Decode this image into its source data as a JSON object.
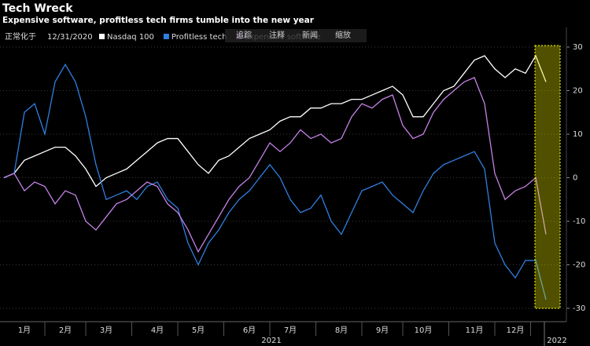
{
  "chart_data": {
    "type": "line",
    "title": "Tech Wreck",
    "subtitle": "Expensive software, profitless tech firms tumble into the new year",
    "normalized_label": "正常化于",
    "normalized_date": "12/31/2020",
    "categories": [
      null,
      null,
      "1月",
      null,
      null,
      null,
      "2月",
      null,
      null,
      null,
      "3月",
      null,
      null,
      null,
      null,
      "4月",
      null,
      null,
      null,
      "5月",
      null,
      null,
      null,
      null,
      "6月",
      null,
      null,
      null,
      "7月",
      null,
      null,
      null,
      null,
      "8月",
      null,
      null,
      null,
      "9月",
      null,
      null,
      null,
      "10月",
      null,
      null,
      null,
      null,
      "11月",
      null,
      null,
      null,
      "12月",
      null,
      null,
      "2022"
    ],
    "year_label": "2021",
    "series": [
      {
        "name": "Nasdaq 100",
        "color": "#ffffff",
        "values": [
          0,
          1,
          4,
          5,
          6,
          7,
          7,
          5,
          2,
          -2,
          0,
          1,
          2,
          4,
          6,
          8,
          9,
          9,
          6,
          3,
          1,
          4,
          5,
          7,
          9,
          10,
          11,
          13,
          14,
          14,
          16,
          16,
          17,
          17,
          18,
          18,
          19,
          20,
          21,
          19,
          14,
          14,
          17,
          20,
          21,
          24,
          27,
          28,
          25,
          23,
          25,
          24,
          28,
          22
        ]
      },
      {
        "name": "Profitless tech",
        "color": "#2f7fe0",
        "values": [
          0,
          1,
          15,
          17,
          10,
          22,
          26,
          22,
          14,
          3,
          -5,
          -4,
          -3,
          -5,
          -2,
          -1,
          -5,
          -7,
          -15,
          -20,
          -15,
          -12,
          -8,
          -5,
          -3,
          0,
          3,
          0,
          -5,
          -8,
          -7,
          -4,
          -10,
          -13,
          -8,
          -3,
          -2,
          -1,
          -4,
          -6,
          -8,
          -3,
          1,
          3,
          4,
          5,
          6,
          2,
          -15,
          -20,
          -23,
          -19,
          -19,
          -28
        ]
      },
      {
        "name": "Expensive software",
        "color": "#c682e8",
        "values": [
          0,
          1,
          -3,
          -1,
          -2,
          -6,
          -3,
          -4,
          -10,
          -12,
          -9,
          -6,
          -5,
          -3,
          -1,
          -2,
          -6,
          -8,
          -12,
          -17,
          -13,
          -9,
          -5,
          -2,
          0,
          4,
          8,
          6,
          8,
          11,
          9,
          10,
          8,
          9,
          14,
          17,
          16,
          18,
          19,
          12,
          9,
          10,
          15,
          18,
          20,
          22,
          23,
          17,
          1,
          -5,
          -3,
          -2,
          0,
          -13
        ]
      }
    ],
    "ylim": [
      -30,
      30
    ],
    "yticks": [
      30,
      20,
      10,
      0,
      -10,
      -20,
      -30
    ],
    "grid": true
  },
  "toolbar": [
    "追踪",
    "注释",
    "新闻",
    "缩放"
  ]
}
